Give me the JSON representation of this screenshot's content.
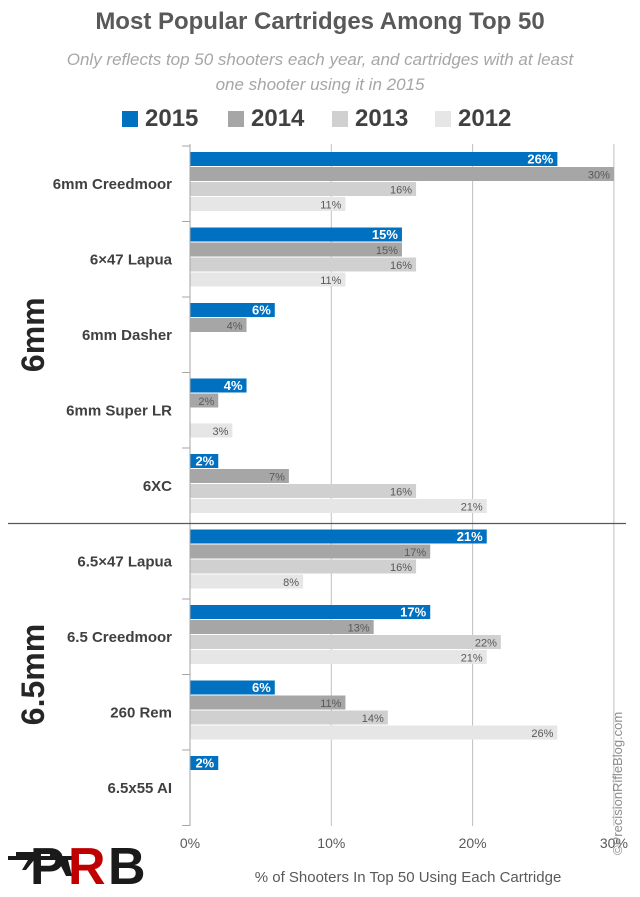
{
  "chart_data": {
    "type": "bar",
    "orientation": "horizontal",
    "title": "Most Popular Cartridges Among Top 50",
    "subtitle": "Only reflects top 50 shooters each year, and cartridges with at least one shooter using it in 2015",
    "xlabel": "% of Shooters In Top 50 Using Each Cartridge",
    "xlim": [
      0,
      30
    ],
    "x_ticks": [
      "0%",
      "10%",
      "20%",
      "30%"
    ],
    "grid": true,
    "legend_position": "top",
    "groups": [
      {
        "name": "6mm",
        "categories": [
          "6mm Creedmoor",
          "6×47 Lapua",
          "6mm Dasher",
          "6mm Super LR",
          "6XC"
        ]
      },
      {
        "name": "6.5mm",
        "categories": [
          "6.5×47 Lapua",
          "6.5 Creedmoor",
          "260 Rem",
          "6.5x55 AI"
        ]
      }
    ],
    "categories": [
      "6mm Creedmoor",
      "6×47 Lapua",
      "6mm Dasher",
      "6mm Super LR",
      "6XC",
      "6.5×47 Lapua",
      "6.5 Creedmoor",
      "260 Rem",
      "6.5x55 AI"
    ],
    "series": [
      {
        "name": "2015",
        "color": "#0070c0",
        "values": [
          26,
          15,
          6,
          4,
          2,
          21,
          17,
          6,
          2
        ],
        "labels": [
          "26%",
          "15%",
          "6%",
          "4%",
          "2%",
          "21%",
          "17%",
          "6%",
          "2%"
        ]
      },
      {
        "name": "2014",
        "color": "#a6a6a6",
        "values": [
          30,
          15,
          4,
          2,
          7,
          17,
          13,
          11,
          null
        ],
        "labels": [
          "30%",
          "15%",
          "4%",
          "2%",
          "7%",
          "17%",
          "13%",
          "11%",
          ""
        ]
      },
      {
        "name": "2013",
        "color": "#d0d0d0",
        "values": [
          16,
          16,
          null,
          null,
          16,
          16,
          22,
          14,
          null
        ],
        "labels": [
          "16%",
          "16%",
          "",
          "",
          "16%",
          "16%",
          "22%",
          "14%",
          ""
        ]
      },
      {
        "name": "2012",
        "color": "#e6e6e6",
        "values": [
          11,
          11,
          null,
          3,
          21,
          8,
          21,
          26,
          null
        ],
        "labels": [
          "11%",
          "11%",
          "",
          "3%",
          "21%",
          "8%",
          "21%",
          "26%",
          ""
        ]
      }
    ]
  },
  "watermark": "©PrecisionRifleBlog.com",
  "logo_text": "PRB"
}
